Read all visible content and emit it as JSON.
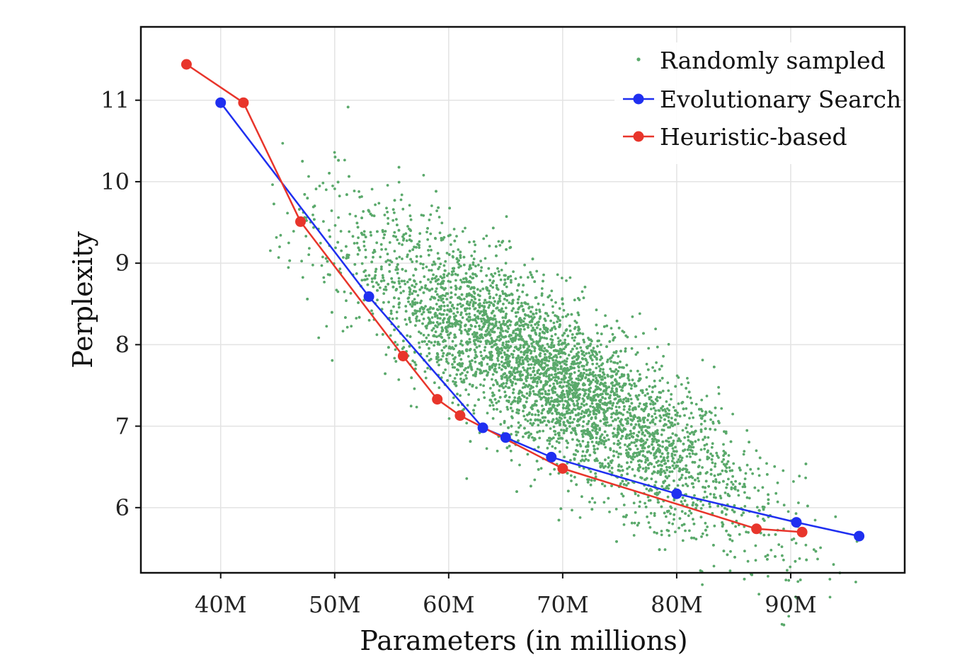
{
  "chart_data": {
    "type": "scatter",
    "title": "",
    "xlabel": "Parameters (in millions)",
    "ylabel": "Perplexity",
    "xlim": [
      33,
      100
    ],
    "ylim": [
      5.2,
      11.9
    ],
    "grid": true,
    "legend_position": "top-right",
    "x_ticks": [
      {
        "value": 40,
        "label": "40M"
      },
      {
        "value": 50,
        "label": "50M"
      },
      {
        "value": 60,
        "label": "60M"
      },
      {
        "value": 70,
        "label": "70M"
      },
      {
        "value": 80,
        "label": "80M"
      },
      {
        "value": 90,
        "label": "90M"
      }
    ],
    "y_ticks": [
      {
        "value": 6,
        "label": "6"
      },
      {
        "value": 7,
        "label": "7"
      },
      {
        "value": 8,
        "label": "8"
      },
      {
        "value": 9,
        "label": "9"
      },
      {
        "value": 10,
        "label": "10"
      },
      {
        "value": 11,
        "label": "11"
      }
    ],
    "scatter_cloud": {
      "name": "Randomly sampled",
      "color": "#5aa96b",
      "count": 5200,
      "x_mean": 69,
      "x_sd": 9,
      "x_range": [
        44,
        96
      ],
      "y_intercept": 13.55,
      "y_slope": -0.0863,
      "y_noise_sd": 0.5
    },
    "series": [
      {
        "name": "Evolutionary Search",
        "color": "#1f2ff0",
        "x": [
          40,
          53,
          63,
          65,
          69,
          80,
          90.5,
          96
        ],
        "y": [
          10.97,
          8.59,
          6.98,
          6.86,
          6.62,
          6.17,
          5.82,
          5.65
        ]
      },
      {
        "name": "Heuristic-based",
        "color": "#e8352b",
        "x": [
          37,
          42,
          47,
          56,
          59,
          61,
          70,
          87,
          91
        ],
        "y": [
          11.44,
          10.97,
          9.51,
          7.86,
          7.33,
          7.13,
          6.48,
          5.74,
          5.7
        ]
      }
    ]
  }
}
